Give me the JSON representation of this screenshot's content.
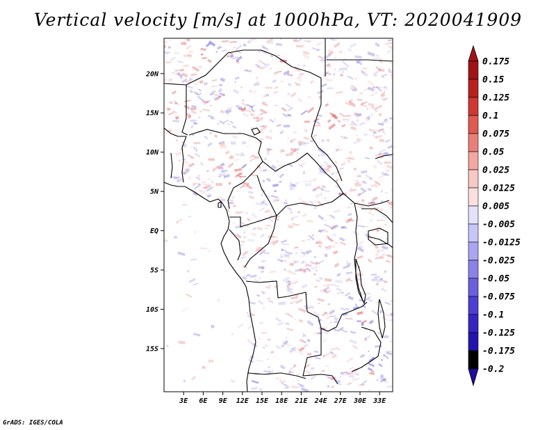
{
  "title": "Vertical velocity [m/s] at 1000hPa, VT: 2020041909",
  "credit": "GrADS: IGES/COLA",
  "map": {
    "lat_range": [
      -20.5,
      24.5
    ],
    "lon_range": [
      0,
      35
    ],
    "lat_ticks": [
      {
        "value": 20,
        "label": "20N"
      },
      {
        "value": 15,
        "label": "15N"
      },
      {
        "value": 10,
        "label": "10N"
      },
      {
        "value": 5,
        "label": "5N"
      },
      {
        "value": 0,
        "label": "EQ"
      },
      {
        "value": -5,
        "label": "5S"
      },
      {
        "value": -10,
        "label": "10S"
      },
      {
        "value": -15,
        "label": "15S"
      }
    ],
    "lon_ticks": [
      {
        "value": 3,
        "label": "3E"
      },
      {
        "value": 6,
        "label": "6E"
      },
      {
        "value": 9,
        "label": "9E"
      },
      {
        "value": 12,
        "label": "12E"
      },
      {
        "value": 15,
        "label": "15E"
      },
      {
        "value": 18,
        "label": "18E"
      },
      {
        "value": 21,
        "label": "21E"
      },
      {
        "value": 24,
        "label": "24E"
      },
      {
        "value": 27,
        "label": "27E"
      },
      {
        "value": 30,
        "label": "30E"
      },
      {
        "value": 33,
        "label": "33E"
      }
    ]
  },
  "colorbar": {
    "levels": [
      {
        "label": "0.175",
        "color": "#a01418"
      },
      {
        "label": "0.15",
        "color": "#b8201e"
      },
      {
        "label": "0.125",
        "color": "#cf3832"
      },
      {
        "label": "0.1",
        "color": "#df5a50"
      },
      {
        "label": "0.075",
        "color": "#e98078"
      },
      {
        "label": "0.05",
        "color": "#f2a7a2"
      },
      {
        "label": "0.025",
        "color": "#f8c8c4"
      },
      {
        "label": "0.0125",
        "color": "#fbe0de"
      },
      {
        "label": "0.005",
        "color": "#ffffff"
      },
      {
        "label": "-0.005",
        "color": "#e4e2fb"
      },
      {
        "label": "-0.0125",
        "color": "#c9c6f7"
      },
      {
        "label": "-0.025",
        "color": "#aaa5f0"
      },
      {
        "label": "-0.05",
        "color": "#8a82e8"
      },
      {
        "label": "-0.075",
        "color": "#6a5fde"
      },
      {
        "label": "-0.1",
        "color": "#4c3fd2"
      },
      {
        "label": "-0.125",
        "color": "#3526c2"
      },
      {
        "label": "-0.175",
        "color": "#2414ae"
      },
      {
        "label": "-0.2",
        "color": ""
      }
    ],
    "top_arrow_color": "#a01418",
    "bottom_arrow_color": "#1f0c9c"
  },
  "colors": {
    "updraft": "#e05a55",
    "downdraft": "#6a5fde",
    "border": "#000000"
  }
}
